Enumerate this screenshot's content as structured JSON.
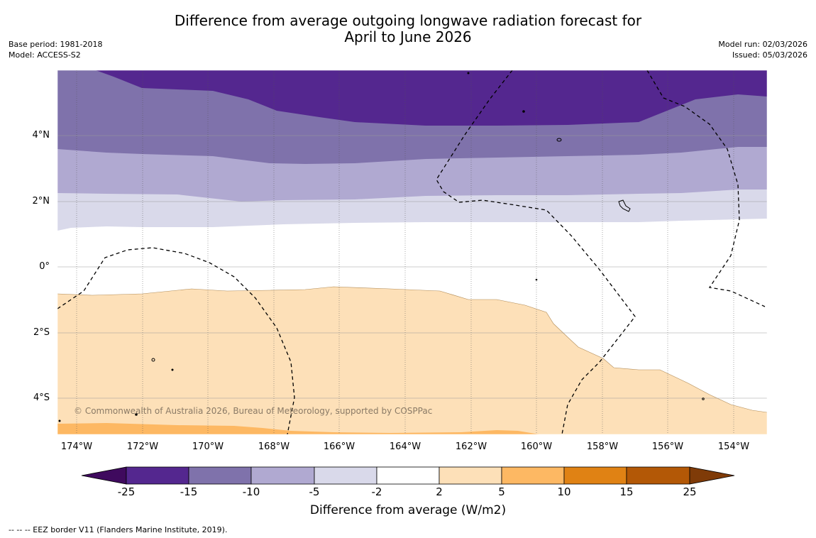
{
  "title_line1": "Difference from average outgoing longwave radiation forecast for",
  "title_line2": "April to June 2026",
  "base_period": "Base period: 1981-2018",
  "model": "Model: ACCESS-S2",
  "model_run": "Model run: 02/03/2026",
  "issued": "Issued: 05/03/2026",
  "lat_labels": [
    "4°N",
    "2°N",
    "0°",
    "2°S",
    "4°S"
  ],
  "lon_labels": [
    "174°W",
    "172°W",
    "170°W",
    "168°W",
    "166°W",
    "164°W",
    "162°W",
    "160°W",
    "158°W",
    "156°W",
    "154°W"
  ],
  "copyright": "© Commonwealth of Australia 2026, Bureau of Meteorology, supported by COSPPac",
  "colorbar": {
    "ticks": [
      "-25",
      "-15",
      "-10",
      "-5",
      "-2",
      "2",
      "5",
      "10",
      "15",
      "25"
    ],
    "colors": [
      "#3f0a5e",
      "#54278f",
      "#7f72ab",
      "#b0a9d1",
      "#d9d9ea",
      "#ffffff",
      "#fde0b8",
      "#fdb863",
      "#e08214",
      "#b35806",
      "#7f3b08"
    ],
    "title": "Difference from average (W/m2)"
  },
  "footer": "--  --  -- EEZ border V11 (Flanders Marine Institute, 2019)."
}
